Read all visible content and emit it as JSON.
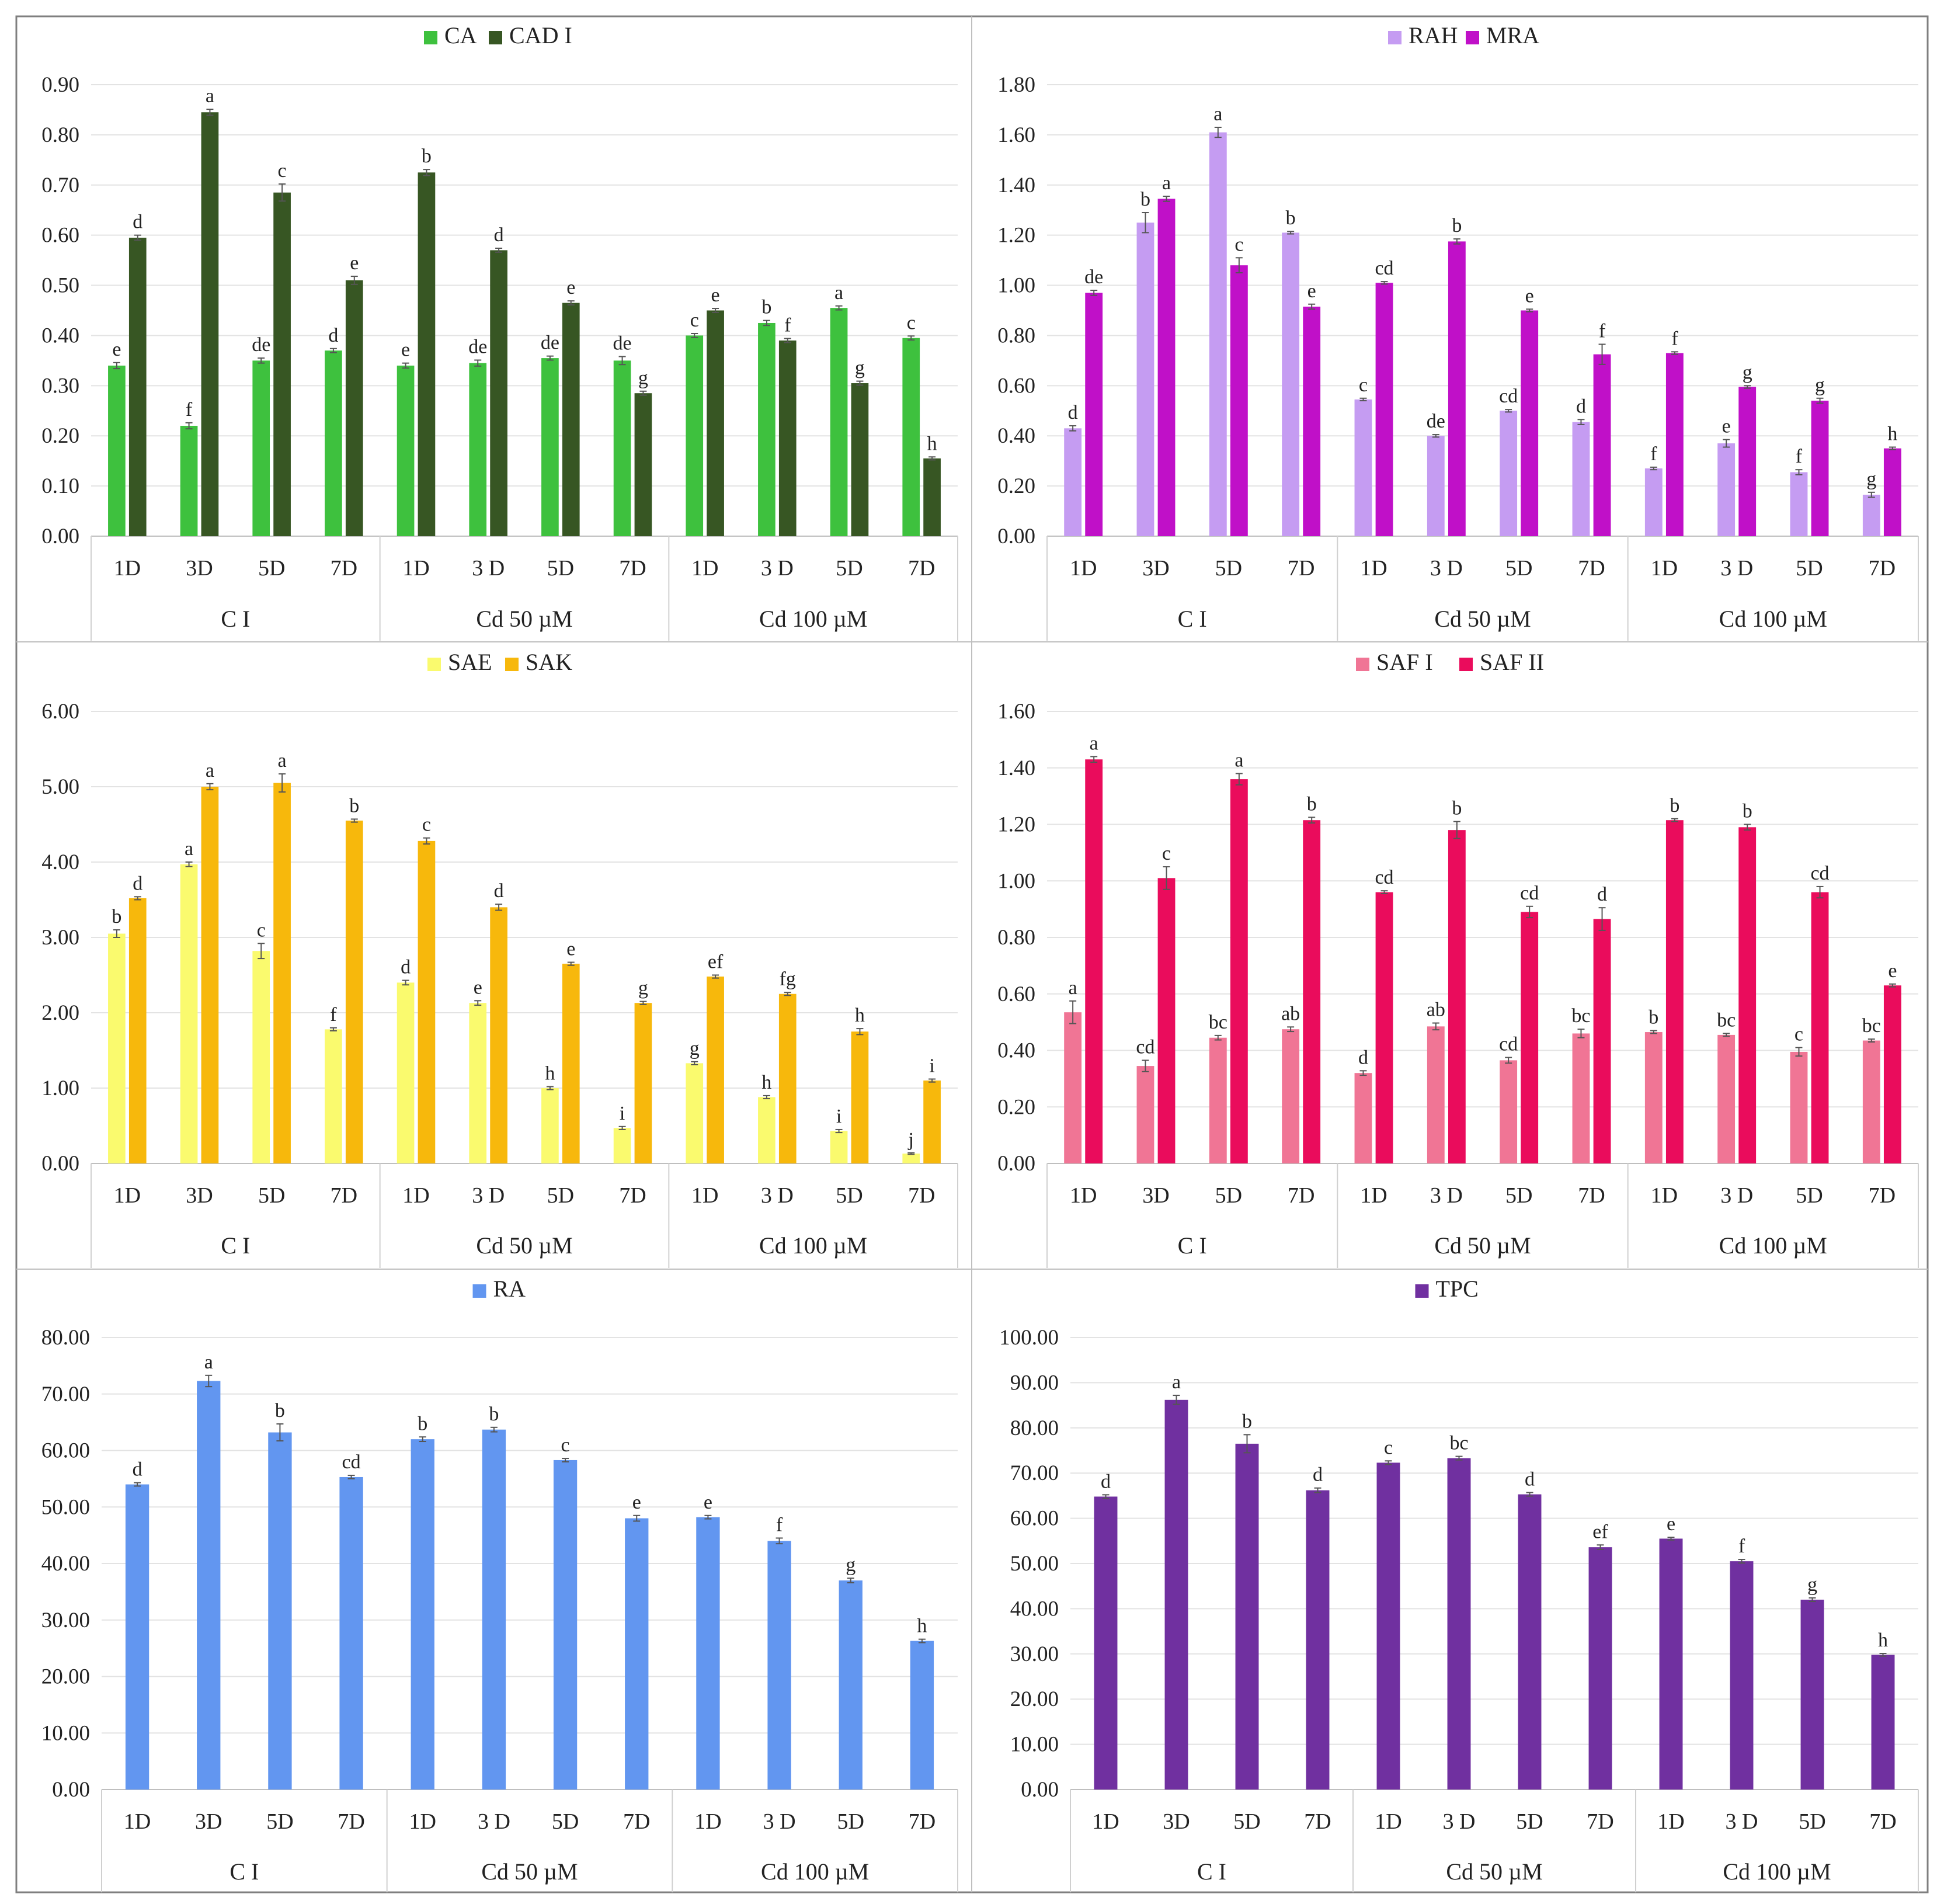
{
  "chart_data": [
    {
      "type": "bar",
      "panel": "top-left",
      "categories": [
        "1D",
        "3D",
        "5D",
        "7D",
        "1D",
        "3 D",
        "5D",
        "7D",
        "1D",
        "3 D",
        "5D",
        "7D"
      ],
      "groups": [
        "C I",
        "Cd 50  µM",
        "Cd 100 µM"
      ],
      "yticks": [
        "0.00",
        "0.10",
        "0.20",
        "0.30",
        "0.40",
        "0.50",
        "0.60",
        "0.70",
        "0.80",
        "0.90"
      ],
      "ylim": [
        0,
        0.9
      ],
      "series": [
        {
          "name": "CA",
          "color": "#3ec13e",
          "values": [
            0.34,
            0.22,
            0.35,
            0.37,
            0.34,
            0.345,
            0.355,
            0.35,
            0.4,
            0.425,
            0.455,
            0.395
          ],
          "errors": [
            0.006,
            0.006,
            0.005,
            0.004,
            0.005,
            0.006,
            0.004,
            0.008,
            0.004,
            0.005,
            0.004,
            0.004
          ],
          "labels": [
            "e",
            "f",
            "de",
            "d",
            "e",
            "de",
            "de",
            "de",
            "c",
            "b",
            "a",
            "c"
          ]
        },
        {
          "name": "CAD I",
          "color": "#375623",
          "values": [
            0.595,
            0.845,
            0.685,
            0.51,
            0.725,
            0.57,
            0.465,
            0.285,
            0.45,
            0.39,
            0.305,
            0.155
          ],
          "errors": [
            0.005,
            0.006,
            0.017,
            0.008,
            0.006,
            0.004,
            0.004,
            0.004,
            0.004,
            0.004,
            0.004,
            0.003
          ],
          "labels": [
            "d",
            "a",
            "c",
            "e",
            "b",
            "d",
            "e",
            "g",
            "e",
            "f",
            "g",
            "h"
          ]
        }
      ]
    },
    {
      "type": "bar",
      "panel": "top-right",
      "categories": [
        "1D",
        "3D",
        "5D",
        "7D",
        "1D",
        "3 D",
        "5D",
        "7D",
        "1D",
        "3 D",
        "5D",
        "7D"
      ],
      "groups": [
        "C I",
        "Cd 50  µM",
        "Cd 100 µM"
      ],
      "yticks": [
        "0.00",
        "0.20",
        "0.40",
        "0.60",
        "0.80",
        "1.00",
        "1.20",
        "1.40",
        "1.60",
        "1.80"
      ],
      "ylim": [
        0,
        1.8
      ],
      "series": [
        {
          "name": "RAH",
          "color": "#c59cf2",
          "values": [
            0.43,
            1.25,
            1.61,
            1.21,
            0.545,
            0.4,
            0.5,
            0.455,
            0.27,
            0.37,
            0.255,
            0.165
          ],
          "errors": [
            0.01,
            0.04,
            0.02,
            0.005,
            0.005,
            0.005,
            0.005,
            0.01,
            0.005,
            0.015,
            0.01,
            0.01
          ],
          "labels": [
            "d",
            "b",
            "a",
            "b",
            "c",
            "de",
            "cd",
            "d",
            "f",
            "e",
            "f",
            "g"
          ]
        },
        {
          "name": "MRA",
          "color": "#c010c8",
          "values": [
            0.97,
            1.345,
            1.08,
            0.915,
            1.01,
            1.175,
            0.9,
            0.725,
            0.73,
            0.595,
            0.54,
            0.35
          ],
          "errors": [
            0.01,
            0.01,
            0.03,
            0.01,
            0.005,
            0.01,
            0.005,
            0.04,
            0.005,
            0.005,
            0.01,
            0.005
          ],
          "labels": [
            "de",
            "a",
            "c",
            "e",
            "cd",
            "b",
            "e",
            "f",
            "f",
            "g",
            "g",
            "h"
          ]
        }
      ]
    },
    {
      "type": "bar",
      "panel": "middle-left",
      "categories": [
        "1D",
        "3D",
        "5D",
        "7D",
        "1D",
        "3 D",
        "5D",
        "7D",
        "1D",
        "3 D",
        "5D",
        "7D"
      ],
      "groups": [
        "C I",
        "Cd 50  µM",
        "Cd 100 µM"
      ],
      "yticks": [
        "0.00",
        "1.00",
        "2.00",
        "3.00",
        "4.00",
        "5.00",
        "6.00"
      ],
      "ylim": [
        0,
        6
      ],
      "series": [
        {
          "name": "SAE",
          "color": "#fafa6e",
          "values": [
            3.05,
            3.97,
            2.82,
            1.78,
            2.4,
            2.13,
            1.0,
            0.47,
            1.33,
            0.88,
            0.43,
            0.13
          ],
          "errors": [
            0.05,
            0.03,
            0.1,
            0.02,
            0.03,
            0.03,
            0.02,
            0.02,
            0.02,
            0.02,
            0.02,
            0.01
          ],
          "labels": [
            "b",
            "a",
            "c",
            "f",
            "d",
            "e",
            "h",
            "i",
            "g",
            "h",
            "i",
            "j"
          ]
        },
        {
          "name": "SAK",
          "color": "#f7b80c",
          "values": [
            3.52,
            5.0,
            5.05,
            4.55,
            4.28,
            3.4,
            2.65,
            2.13,
            2.48,
            2.25,
            1.75,
            1.1
          ],
          "errors": [
            0.02,
            0.04,
            0.12,
            0.02,
            0.04,
            0.04,
            0.02,
            0.02,
            0.02,
            0.02,
            0.04,
            0.02
          ],
          "labels": [
            "d",
            "a",
            "a",
            "b",
            "c",
            "d",
            "e",
            "g",
            "ef",
            "fg",
            "h",
            "i"
          ]
        }
      ]
    },
    {
      "type": "bar",
      "panel": "middle-right",
      "categories": [
        "1D",
        "3D",
        "5D",
        "7D",
        "1D",
        "3 D",
        "5D",
        "7D",
        "1D",
        "3 D",
        "5D",
        "7D"
      ],
      "groups": [
        "C I",
        "Cd 50  µM",
        "Cd 100 µM"
      ],
      "yticks": [
        "0.00",
        "0.20",
        "0.40",
        "0.60",
        "0.80",
        "1.00",
        "1.20",
        "1.40",
        "1.60"
      ],
      "ylim": [
        0,
        1.6
      ],
      "series": [
        {
          "name": "SAF I",
          "color": "#f07595",
          "values": [
            0.535,
            0.345,
            0.445,
            0.475,
            0.32,
            0.485,
            0.365,
            0.46,
            0.465,
            0.455,
            0.395,
            0.435
          ],
          "errors": [
            0.04,
            0.02,
            0.008,
            0.008,
            0.008,
            0.012,
            0.01,
            0.015,
            0.005,
            0.005,
            0.015,
            0.005
          ],
          "labels": [
            "a",
            "cd",
            "bc",
            "ab",
            "d",
            "ab",
            "cd",
            "bc",
            "b",
            "bc",
            "c",
            "bc"
          ]
        },
        {
          "name": "SAF II",
          "color": "#ea0c5c",
          "values": [
            1.43,
            1.01,
            1.36,
            1.215,
            0.96,
            1.18,
            0.89,
            0.865,
            1.215,
            1.19,
            0.96,
            0.63
          ],
          "errors": [
            0.01,
            0.04,
            0.02,
            0.01,
            0.005,
            0.03,
            0.02,
            0.04,
            0.005,
            0.01,
            0.02,
            0.005
          ],
          "labels": [
            "a",
            "c",
            "a",
            "b",
            "cd",
            "b",
            "cd",
            "d",
            "b",
            "b",
            "cd",
            "e"
          ]
        }
      ]
    },
    {
      "type": "bar",
      "panel": "bottom-left",
      "categories": [
        "1D",
        "3D",
        "5D",
        "7D",
        "1D",
        "3 D",
        "5D",
        "7D",
        "1D",
        "3 D",
        "5D",
        "7D"
      ],
      "groups": [
        "C I",
        "Cd 50  µM",
        "Cd 100 µM"
      ],
      "yticks": [
        "0.00",
        "10.00",
        "20.00",
        "30.00",
        "40.00",
        "50.00",
        "60.00",
        "70.00",
        "80.00"
      ],
      "ylim": [
        0,
        80
      ],
      "series": [
        {
          "name": "RA",
          "color": "#6296f0",
          "values": [
            54.0,
            72.3,
            63.2,
            55.3,
            62.0,
            63.7,
            58.3,
            48.0,
            48.2,
            44.0,
            37.0,
            26.3
          ],
          "errors": [
            0.3,
            1.0,
            1.5,
            0.3,
            0.4,
            0.4,
            0.3,
            0.5,
            0.3,
            0.5,
            0.4,
            0.3
          ],
          "labels": [
            "d",
            "a",
            "b",
            "cd",
            "b",
            "b",
            "c",
            "e",
            "e",
            "f",
            "g",
            "h"
          ]
        }
      ]
    },
    {
      "type": "bar",
      "panel": "bottom-right",
      "categories": [
        "1D",
        "3D",
        "5D",
        "7D",
        "1D",
        "3 D",
        "5D",
        "7D",
        "1D",
        "3 D",
        "5D",
        "7D"
      ],
      "groups": [
        "C I",
        "Cd 50  µM",
        "Cd 100 µM"
      ],
      "yticks": [
        "0.00",
        "10.00",
        "20.00",
        "30.00",
        "40.00",
        "50.00",
        "60.00",
        "70.00",
        "80.00",
        "90.00",
        "100.00"
      ],
      "ylim": [
        0,
        100
      ],
      "series": [
        {
          "name": "TPC",
          "color": "#7030a0",
          "values": [
            64.8,
            86.2,
            76.5,
            66.2,
            72.3,
            73.3,
            65.3,
            53.6,
            55.5,
            50.5,
            42.0,
            29.8
          ],
          "errors": [
            0.4,
            1.0,
            2.0,
            0.5,
            0.4,
            0.4,
            0.4,
            0.5,
            0.3,
            0.4,
            0.4,
            0.3
          ],
          "labels": [
            "d",
            "a",
            "b",
            "d",
            "c",
            "bc",
            "d",
            "ef",
            "e",
            "f",
            "g",
            "h"
          ]
        }
      ]
    }
  ]
}
